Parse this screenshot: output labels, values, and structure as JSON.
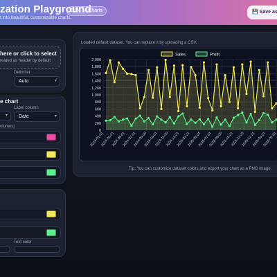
{
  "header": {
    "title": "zation Playground",
    "badge": "CSV → Charts",
    "subtitle": "t into beautiful, customizable charts.",
    "save_label": "💾 Save as i"
  },
  "upload": {
    "title": "here or click to select",
    "subtitle": "reated as header by default",
    "delimiter_label": "Delimiter",
    "delimiter_value": "Auto"
  },
  "config": {
    "section_title": "e chart",
    "label_column_label": "Label column",
    "label_column_value": "Date",
    "series_label": "olumns)"
  },
  "colors": {
    "series_swatches": [
      "#e64fa4",
      "#f2e85c",
      "#5ef08f"
    ],
    "style_swatches": [
      "#f2e85c",
      "#5ef08f"
    ],
    "text_color_label": "Text color"
  },
  "main": {
    "status": "Loaded default dataset. You can replace it by uploading a CSV.",
    "tip": "Tip: You can customize dataset colors and export your chart as a PNG image."
  },
  "chart_data": {
    "type": "line",
    "legend": [
      "Sales",
      "Profit"
    ],
    "legend_position": "top-center",
    "ylim": [
      0,
      2000
    ],
    "yticks": [
      "0",
      "200",
      "400",
      "600",
      "800",
      "1,000",
      "1,200",
      "1,400",
      "1,600",
      "1,800",
      "2,000"
    ],
    "xticks": [
      "2024-01-01",
      "2024-03-31",
      "2024-05-01",
      "2024-07-01",
      "2024-09-30",
      "2024-10-31",
      "2024-11-30",
      "2024-12-31",
      "2025-03-31",
      "2025-05-01",
      "2025-07-01",
      "2025-09-30",
      "2025-10-31",
      "2025-11-30",
      "2025-12-31",
      "2026-03-31",
      "2026-07-01"
    ],
    "grid": true,
    "series": [
      {
        "name": "Sales",
        "color": "#f2e85c",
        "values": [
          1620,
          1980,
          1360,
          1920,
          1740,
          1600,
          1590,
          1560,
          620,
          940,
          1700,
          920,
          1780,
          600,
          1990,
          940,
          1830,
          540,
          1840,
          680,
          1790,
          1560,
          640,
          1920,
          910,
          560,
          1860,
          680,
          1560,
          800,
          1780,
          620,
          1860,
          1030,
          1940,
          520,
          1700,
          960,
          1920,
          620,
          760
        ]
      },
      {
        "name": "Profit",
        "color": "#5ef08f",
        "values": [
          270,
          280,
          370,
          250,
          300,
          330,
          130,
          330,
          410,
          250,
          340,
          170,
          390,
          300,
          220,
          370,
          190,
          390,
          470,
          180,
          300,
          210,
          310,
          170,
          320,
          100,
          360,
          160,
          300,
          120,
          350,
          430,
          500,
          220,
          460,
          150,
          290,
          480,
          440,
          220,
          300
        ]
      }
    ]
  }
}
